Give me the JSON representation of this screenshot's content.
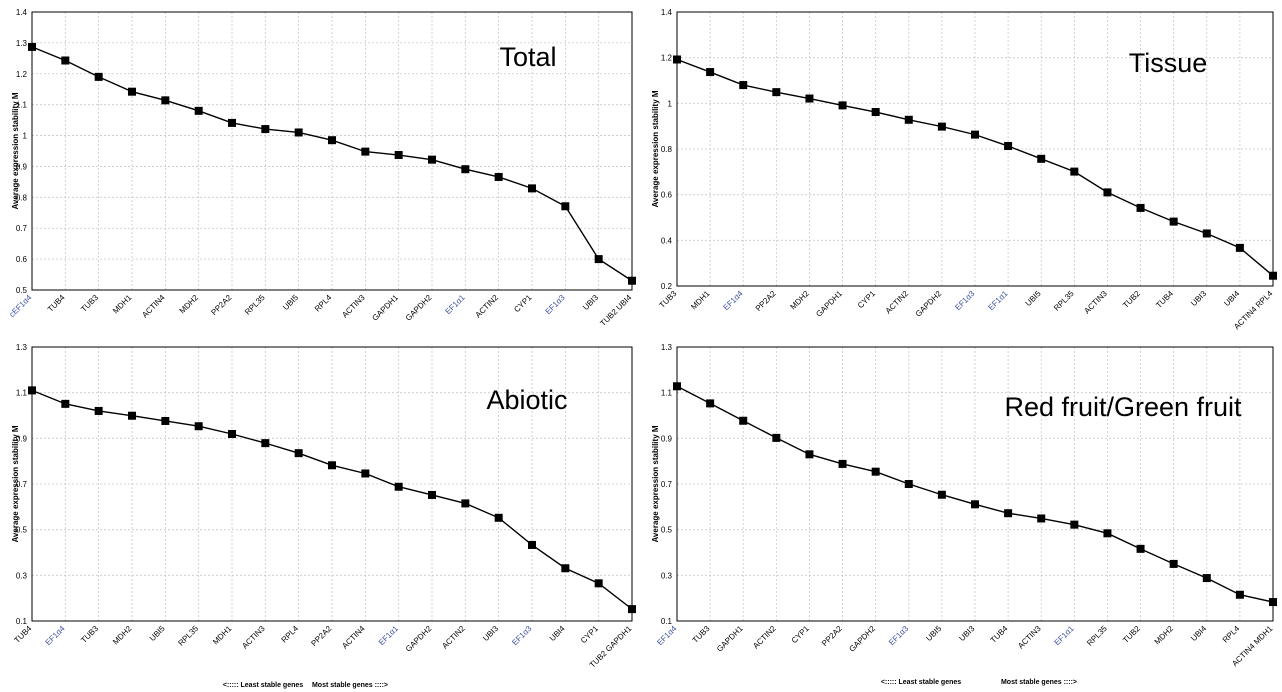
{
  "chart_data": [
    {
      "type": "line",
      "title": "Total",
      "ylabel": "Average expression stability M",
      "ylim": [
        0.5,
        1.4
      ],
      "yticks": [
        0.5,
        0.6,
        0.7,
        0.8,
        0.9,
        1,
        1.1,
        1.2,
        1.3,
        1.4
      ],
      "grid": true,
      "categories": [
        "cEF1α4",
        "TUB4",
        "TUB3",
        "MDH1",
        "ACTIN4",
        "MDH2",
        "PP2A2",
        "RPL35",
        "UBI5",
        "RPL4",
        "ACTIN3",
        "GAPDH1",
        "GAPDH2",
        "EF1α1",
        "ACTIN2",
        "CYP1",
        "EF1α3",
        "UBI3",
        "TUB2 UBI4"
      ],
      "highlighted": [
        "cEF1α4",
        "EF1α1",
        "EF1α3"
      ],
      "values": [
        1.287,
        1.243,
        1.19,
        1.142,
        1.114,
        1.08,
        1.041,
        1.021,
        1.01,
        0.985,
        0.948,
        0.937,
        0.922,
        0.891,
        0.866,
        0.829,
        0.771,
        0.6,
        0.53
      ],
      "footer": null
    },
    {
      "type": "line",
      "title": "Tissue",
      "ylabel": "Average expression stability M",
      "ylim": [
        0.2,
        1.4
      ],
      "yticks": [
        0.2,
        0.4,
        0.6,
        0.8,
        1,
        1.2,
        1.4
      ],
      "grid": true,
      "categories": [
        "TUB3",
        "MDH1",
        "EF1α4",
        "PP2A2",
        "MDH2",
        "GAPDH1",
        "CYP1",
        "ACTIN2",
        "GAPDH2",
        "EF1α3",
        "EF1α1",
        "UBI5",
        "RPL35",
        "ACTIN3",
        "TUB2",
        "TUB4",
        "UBI3",
        "UBI4",
        "ACTIN4 RPL4"
      ],
      "highlighted": [
        "EF1α4",
        "EF1α3",
        "EF1α1"
      ],
      "values": [
        1.192,
        1.137,
        1.08,
        1.049,
        1.021,
        0.991,
        0.962,
        0.928,
        0.898,
        0.863,
        0.813,
        0.757,
        0.701,
        0.61,
        0.542,
        0.482,
        0.43,
        0.367,
        0.245
      ],
      "footer": null
    },
    {
      "type": "line",
      "title": "Abiotic",
      "ylabel": "Average expression stability M",
      "ylim": [
        0.1,
        1.3
      ],
      "yticks": [
        0.1,
        0.3,
        0.5,
        0.7,
        0.9,
        1.1,
        1.3
      ],
      "grid": true,
      "categories": [
        "TUB4",
        "EF1α4",
        "TUB3",
        "MDH2",
        "UBI5",
        "RPL35",
        "MDH1",
        "ACTIN3",
        "RPL4",
        "PP2A2",
        "ACTIN4",
        "EF1α1",
        "GAPDH2",
        "ACTIN2",
        "UBI3",
        "EF1α3",
        "UBI4",
        "CYP1",
        "TUB2 GAPDH1"
      ],
      "highlighted": [
        "EF1α4",
        "EF1α1",
        "EF1α3"
      ],
      "values": [
        1.11,
        1.051,
        1.02,
        0.999,
        0.976,
        0.953,
        0.919,
        0.879,
        0.835,
        0.782,
        0.746,
        0.688,
        0.652,
        0.615,
        0.552,
        0.433,
        0.331,
        0.265,
        0.152
      ],
      "footer": {
        "left": "<::::: Least stable genes",
        "right": "Most stable genes ::::>"
      }
    },
    {
      "type": "line",
      "title": "Red fruit/Green fruit",
      "ylabel": "Average expression stability M",
      "ylim": [
        0.1,
        1.3
      ],
      "yticks": [
        0.1,
        0.3,
        0.5,
        0.7,
        0.9,
        1.1,
        1.3
      ],
      "grid": true,
      "categories": [
        "EF1α4",
        "TUB3",
        "GAPDH1",
        "ACTIN2",
        "CYP1",
        "PP2A2",
        "GAPDH2",
        "EF1α3",
        "UBI5",
        "UBI3",
        "TUB4",
        "ACTIN3",
        "EF1α1",
        "RPL35",
        "TUB2",
        "MDH2",
        "UBI4",
        "RPL4",
        "ACTIN4 MDH1"
      ],
      "highlighted": [
        "EF1α4",
        "EF1α3",
        "EF1α1"
      ],
      "values": [
        1.128,
        1.053,
        0.977,
        0.902,
        0.83,
        0.788,
        0.754,
        0.7,
        0.653,
        0.611,
        0.572,
        0.549,
        0.522,
        0.484,
        0.416,
        0.35,
        0.288,
        0.215,
        0.183
      ],
      "footer": {
        "left": "<::::: Least stable genes",
        "right": "Most stable genes ::::>"
      }
    }
  ]
}
